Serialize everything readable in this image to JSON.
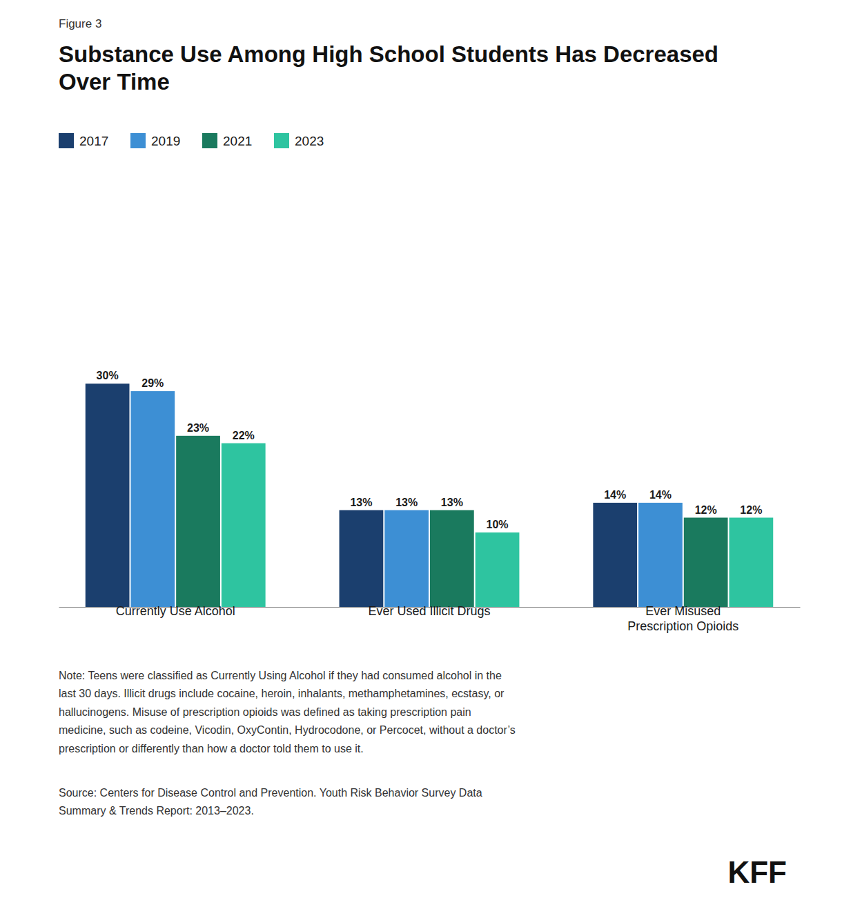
{
  "chart_data": {
    "type": "bar",
    "title": "Substance Use Among High School Students Has Decreased\nOver Time",
    "annotations": [
      "Figure 3",
      "Note: Teens were classified as Currently Using Alcohol if they had consumed alcohol in the\nlast 30 days. Illicit drugs include cocaine, heroin, inhalants, methamphetamines, ecstasy, or\nhallucinogens. Misuse of prescription opioids was defined as taking prescription pain\nmedicine, such as codeine, Vicodin, OxyContin, Hydrocodone, or Percocet, without a doctor’s\nprescription or differently than how a doctor told them to use it.",
      "Source: Centers for Disease Control and Prevention. Youth Risk Behavior Survey Data\nSummary & Trends Report: 2013–2023.",
      "KFF"
    ],
    "categories": [
      "Currently Use Alcohol",
      "Ever Used Illicit Drugs",
      "Ever Misused\nPrescription Opioids"
    ],
    "series": [
      {
        "name": "2017",
        "color": "#1b3f6e",
        "values": [
          30,
          13,
          14
        ],
        "value_labels": [
          "30%",
          "13%",
          "14%"
        ]
      },
      {
        "name": "2019",
        "color": "#3d8fd4",
        "values": [
          29,
          13,
          14
        ],
        "value_labels": [
          "29%",
          "13%",
          "14%"
        ]
      },
      {
        "name": "2021",
        "color": "#1a7a5e",
        "values": [
          23,
          13,
          12
        ],
        "value_labels": [
          "23%",
          "13%",
          "12%"
        ]
      },
      {
        "name": "2023",
        "color": "#2ec4a0",
        "values": [
          22,
          10,
          12
        ],
        "value_labels": [
          "22%",
          "10%",
          "12%"
        ]
      }
    ],
    "ylim": [
      0,
      38
    ],
    "grid": false,
    "legend": "top-left",
    "data_labels": true,
    "tick_labels": "x"
  }
}
